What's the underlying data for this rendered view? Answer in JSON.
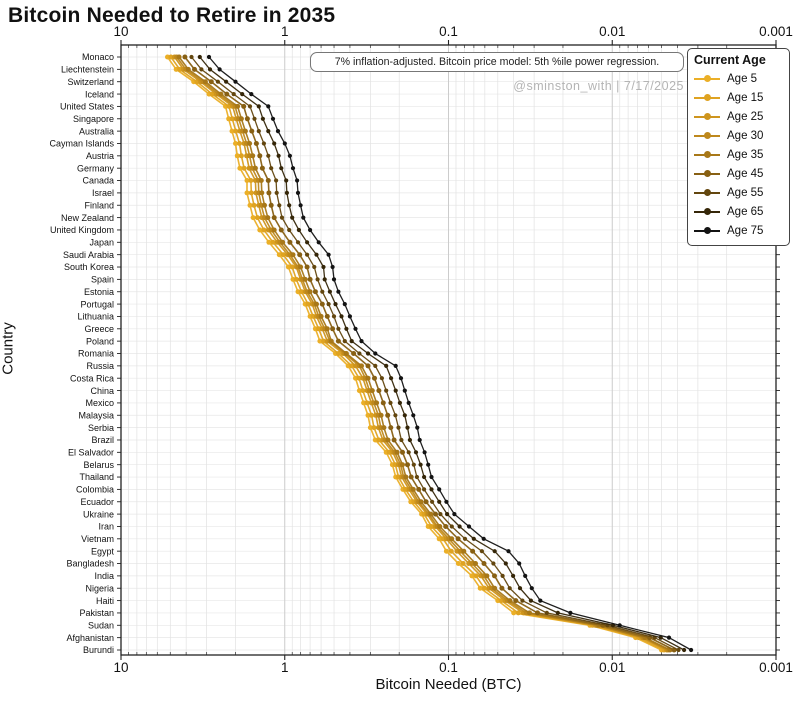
{
  "title": "Bitcoin Needed to Retire in 2035",
  "annotation": "7% inflation-adjusted. Bitcoin price model: 5th %ile power regression.",
  "watermark": "@sminston_with  |  7/17/2025",
  "legend": {
    "title": "Current Age"
  },
  "chart_data": {
    "type": "line",
    "title": "Bitcoin Needed to Retire in 2035",
    "xlabel": "Bitcoin Needed (BTC)",
    "ylabel": "Country",
    "x_scale": "log",
    "x_axis_reversed": true,
    "x_range": [
      10,
      0.001
    ],
    "x_ticks": [
      "10",
      "1",
      "0.1",
      "0.01",
      "0.001"
    ],
    "grid": true,
    "legend_position": "upper right",
    "categories": [
      "Monaco",
      "Liechtenstein",
      "Switzerland",
      "Iceland",
      "United States",
      "Singapore",
      "Australia",
      "Cayman Islands",
      "Austria",
      "Germany",
      "Canada",
      "Israel",
      "Finland",
      "New Zealand",
      "United Kingdom",
      "Japan",
      "Saudi Arabia",
      "South Korea",
      "Spain",
      "Estonia",
      "Portugal",
      "Lithuania",
      "Greece",
      "Poland",
      "Romania",
      "Russia",
      "Costa Rica",
      "China",
      "Mexico",
      "Malaysia",
      "Serbia",
      "Brazil",
      "El Salvador",
      "Belarus",
      "Thailand",
      "Colombia",
      "Ecuador",
      "Ukraine",
      "Iran",
      "Vietnam",
      "Egypt",
      "Bangladesh",
      "India",
      "Nigeria",
      "Haiti",
      "Pakistan",
      "Sudan",
      "Afghanistan",
      "Burundi"
    ],
    "series": [
      {
        "name": "Age 5",
        "color": "#EBAF27",
        "values": [
          5.2,
          4.6,
          3.6,
          2.9,
          2.3,
          2.2,
          2.1,
          2.0,
          1.95,
          1.88,
          1.7,
          1.7,
          1.63,
          1.56,
          1.42,
          1.25,
          1.08,
          0.95,
          0.89,
          0.83,
          0.75,
          0.7,
          0.65,
          0.61,
          0.49,
          0.41,
          0.37,
          0.35,
          0.33,
          0.31,
          0.3,
          0.28,
          0.24,
          0.22,
          0.21,
          0.19,
          0.17,
          0.146,
          0.133,
          0.114,
          0.103,
          0.087,
          0.072,
          0.064,
          0.05,
          0.04,
          0.0137,
          0.0072,
          0.005
        ]
      },
      {
        "name": "Age 15",
        "color": "#DFA321",
        "values": [
          4.96,
          4.38,
          3.44,
          2.77,
          2.19,
          2.09,
          1.99,
          1.89,
          1.84,
          1.77,
          1.61,
          1.6,
          1.54,
          1.47,
          1.34,
          1.18,
          1.02,
          0.9,
          0.85,
          0.79,
          0.72,
          0.67,
          0.62,
          0.58,
          0.47,
          0.39,
          0.352,
          0.333,
          0.314,
          0.295,
          0.285,
          0.266,
          0.23,
          0.211,
          0.202,
          0.183,
          0.163,
          0.141,
          0.127,
          0.108,
          0.0962,
          0.0813,
          0.0678,
          0.0604,
          0.0476,
          0.0375,
          0.0132,
          0.0069,
          0.00483
        ]
      },
      {
        "name": "Age 25",
        "color": "#CE951E",
        "values": [
          4.71,
          4.15,
          3.26,
          2.62,
          2.08,
          1.98,
          1.88,
          1.77,
          1.71,
          1.65,
          1.51,
          1.5,
          1.44,
          1.38,
          1.26,
          1.11,
          0.96,
          0.85,
          0.8,
          0.75,
          0.68,
          0.64,
          0.59,
          0.55,
          0.44,
          0.37,
          0.333,
          0.314,
          0.296,
          0.278,
          0.268,
          0.252,
          0.219,
          0.202,
          0.193,
          0.174,
          0.156,
          0.135,
          0.12,
          0.103,
          0.0889,
          0.0753,
          0.0634,
          0.0566,
          0.0451,
          0.0349,
          0.0127,
          0.0066,
          0.00466
        ]
      },
      {
        "name": "Age 30",
        "color": "#BE881C",
        "values": [
          4.57,
          4.02,
          3.16,
          2.54,
          2.01,
          1.91,
          1.81,
          1.71,
          1.64,
          1.58,
          1.45,
          1.44,
          1.39,
          1.33,
          1.21,
          1.07,
          0.93,
          0.83,
          0.78,
          0.73,
          0.66,
          0.62,
          0.57,
          0.53,
          0.43,
          0.35,
          0.322,
          0.304,
          0.286,
          0.268,
          0.259,
          0.244,
          0.213,
          0.196,
          0.188,
          0.169,
          0.152,
          0.132,
          0.117,
          0.0995,
          0.0848,
          0.0719,
          0.0609,
          0.0545,
          0.0437,
          0.0335,
          0.0124,
          0.00649,
          0.00456
        ]
      },
      {
        "name": "Age 35",
        "color": "#A87818",
        "values": [
          4.42,
          3.88,
          3.05,
          2.45,
          1.94,
          1.84,
          1.74,
          1.64,
          1.57,
          1.51,
          1.39,
          1.38,
          1.33,
          1.27,
          1.16,
          1.03,
          0.89,
          0.8,
          0.75,
          0.7,
          0.64,
          0.6,
          0.55,
          0.52,
          0.42,
          0.34,
          0.31,
          0.292,
          0.275,
          0.258,
          0.248,
          0.234,
          0.206,
          0.191,
          0.182,
          0.164,
          0.147,
          0.128,
          0.113,
          0.0956,
          0.0806,
          0.0684,
          0.0583,
          0.0523,
          0.0421,
          0.032,
          0.0121,
          0.00632,
          0.00444
        ]
      },
      {
        "name": "Age 45",
        "color": "#886013",
        "values": [
          4.07,
          3.56,
          2.81,
          2.26,
          1.78,
          1.69,
          1.59,
          1.49,
          1.42,
          1.37,
          1.26,
          1.25,
          1.21,
          1.16,
          1.05,
          0.93,
          0.81,
          0.73,
          0.7,
          0.65,
          0.59,
          0.55,
          0.51,
          0.47,
          0.38,
          0.31,
          0.283,
          0.266,
          0.25,
          0.235,
          0.225,
          0.215,
          0.191,
          0.178,
          0.169,
          0.152,
          0.137,
          0.12,
          0.104,
          0.0874,
          0.0713,
          0.0607,
          0.0524,
          0.0472,
          0.0388,
          0.0286,
          0.0114,
          0.00591,
          0.00419
        ]
      },
      {
        "name": "Age 55",
        "color": "#63460E",
        "values": [
          3.71,
          3.23,
          2.56,
          2.05,
          1.63,
          1.53,
          1.44,
          1.34,
          1.26,
          1.21,
          1.13,
          1.12,
          1.08,
          1.04,
          0.94,
          0.83,
          0.73,
          0.66,
          0.63,
          0.59,
          0.54,
          0.5,
          0.47,
          0.43,
          0.35,
          0.28,
          0.255,
          0.24,
          0.226,
          0.211,
          0.202,
          0.194,
          0.175,
          0.163,
          0.156,
          0.141,
          0.126,
          0.112,
          0.0955,
          0.0793,
          0.0625,
          0.0532,
          0.0467,
          0.0423,
          0.0354,
          0.0251,
          0.0107,
          0.00551,
          0.00394
        ]
      },
      {
        "name": "Age 65",
        "color": "#352608",
        "values": [
          3.3,
          2.86,
          2.28,
          1.82,
          1.44,
          1.36,
          1.26,
          1.16,
          1.09,
          1.05,
          0.98,
          0.97,
          0.94,
          0.9,
          0.82,
          0.73,
          0.64,
          0.58,
          0.57,
          0.53,
          0.49,
          0.45,
          0.42,
          0.39,
          0.31,
          0.24,
          0.224,
          0.21,
          0.198,
          0.185,
          0.178,
          0.172,
          0.158,
          0.148,
          0.141,
          0.127,
          0.114,
          0.102,
          0.0855,
          0.0701,
          0.0522,
          0.0447,
          0.0403,
          0.0366,
          0.0314,
          0.0215,
          0.0099,
          0.00506,
          0.00364
        ]
      },
      {
        "name": "Age 75",
        "color": "#131313",
        "values": [
          2.9,
          2.5,
          2.0,
          1.6,
          1.26,
          1.18,
          1.1,
          1.0,
          0.93,
          0.89,
          0.84,
          0.83,
          0.8,
          0.77,
          0.7,
          0.62,
          0.54,
          0.51,
          0.5,
          0.47,
          0.43,
          0.4,
          0.37,
          0.34,
          0.28,
          0.21,
          0.195,
          0.185,
          0.175,
          0.164,
          0.155,
          0.15,
          0.14,
          0.133,
          0.127,
          0.114,
          0.103,
          0.092,
          0.075,
          0.061,
          0.043,
          0.037,
          0.034,
          0.031,
          0.0275,
          0.018,
          0.009,
          0.0045,
          0.0033
        ]
      }
    ]
  }
}
